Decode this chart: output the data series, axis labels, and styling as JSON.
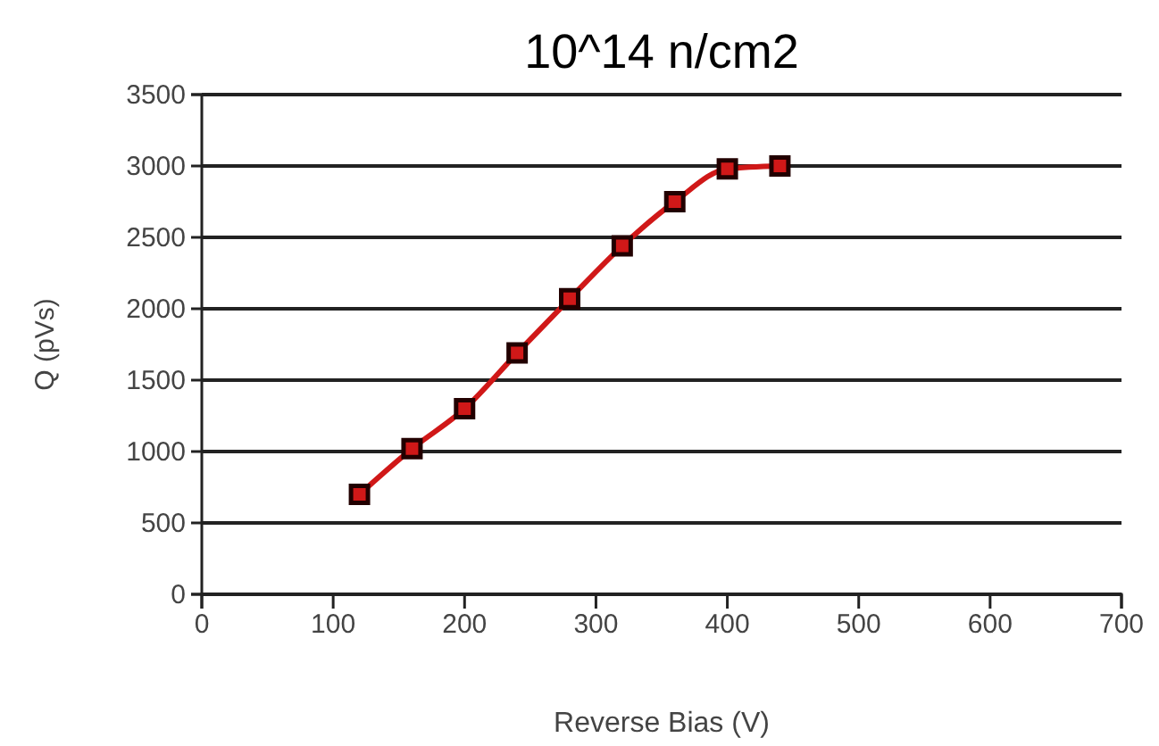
{
  "chart_data": {
    "type": "line",
    "title": "10^14 n/cm2",
    "xlabel": "Reverse Bias (V)",
    "ylabel": "Q (pVs)",
    "x": [
      120,
      160,
      200,
      240,
      280,
      320,
      360,
      400,
      440
    ],
    "series": [
      {
        "color": "#d01818",
        "values": [
          700,
          1020,
          1300,
          1690,
          2070,
          2440,
          2750,
          2980,
          3000
        ]
      }
    ],
    "xlim": [
      0,
      700
    ],
    "xticks": [
      0,
      100,
      200,
      300,
      400,
      500,
      600,
      700
    ],
    "ylim": [
      0,
      3500
    ],
    "yticks": [
      0,
      500,
      1000,
      1500,
      2000,
      2500,
      3000,
      3500
    ],
    "grid": "y",
    "marker": "square",
    "line_style": "solid"
  }
}
